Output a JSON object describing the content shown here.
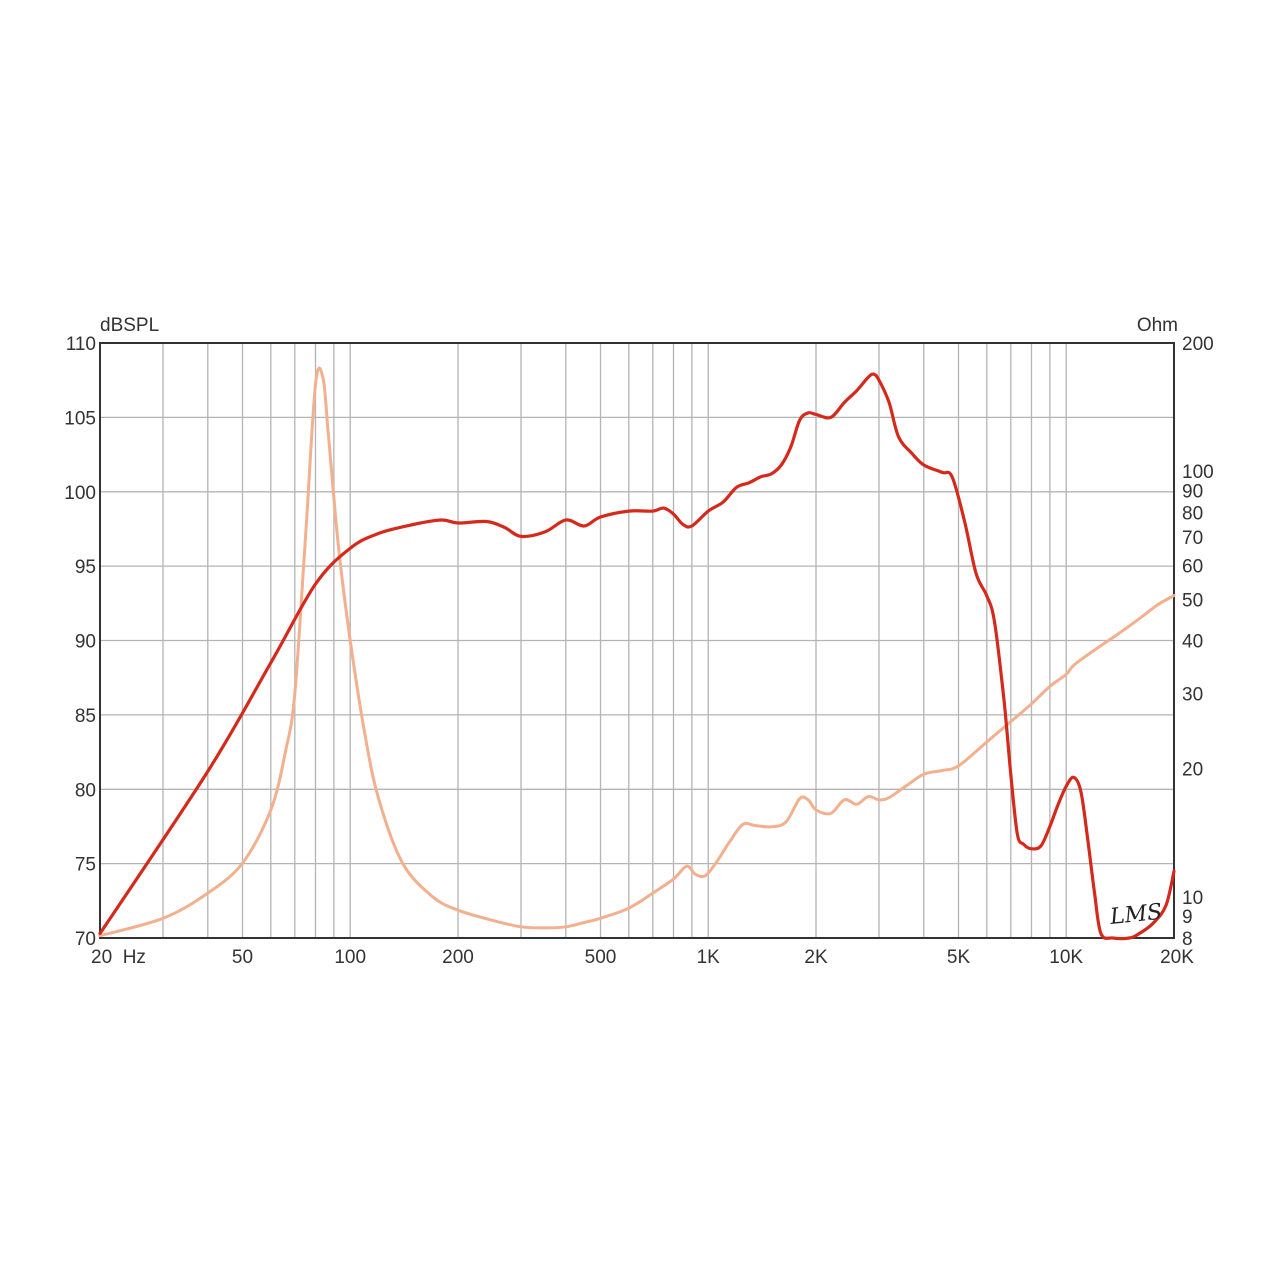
{
  "chart_data": {
    "type": "line",
    "x_scale": "log",
    "xlim": [
      20,
      20000
    ],
    "grid": true,
    "x_ticks": [
      {
        "value": 20,
        "label": "20  Hz"
      },
      {
        "value": 50,
        "label": "50"
      },
      {
        "value": 100,
        "label": "100"
      },
      {
        "value": 200,
        "label": "200"
      },
      {
        "value": 500,
        "label": "500"
      },
      {
        "value": 1000,
        "label": "1K"
      },
      {
        "value": 2000,
        "label": "2K"
      },
      {
        "value": 5000,
        "label": "5K"
      },
      {
        "value": 10000,
        "label": "10K"
      },
      {
        "value": 20000,
        "label": "20K"
      }
    ],
    "y_left": {
      "label": "dBSPL",
      "lim": [
        70,
        110
      ],
      "ticks": [
        70,
        75,
        80,
        85,
        90,
        95,
        100,
        105,
        110
      ]
    },
    "y_right": {
      "label": "Ohm",
      "scale": "log",
      "lim": [
        8,
        200
      ],
      "ticks": [
        8,
        9,
        10,
        20,
        30,
        40,
        50,
        60,
        70,
        80,
        90,
        100,
        200
      ]
    },
    "series": [
      {
        "axis": "left",
        "color": "#d42a1c",
        "points": [
          [
            20,
            70.3
          ],
          [
            40,
            81.2
          ],
          [
            60,
            88.5
          ],
          [
            80,
            93.8
          ],
          [
            100,
            96.2
          ],
          [
            120,
            97.2
          ],
          [
            150,
            97.8
          ],
          [
            180,
            98.1
          ],
          [
            200,
            97.9
          ],
          [
            240,
            98.0
          ],
          [
            270,
            97.6
          ],
          [
            300,
            97.0
          ],
          [
            350,
            97.3
          ],
          [
            400,
            98.1
          ],
          [
            450,
            97.7
          ],
          [
            500,
            98.3
          ],
          [
            600,
            98.7
          ],
          [
            700,
            98.7
          ],
          [
            750,
            98.9
          ],
          [
            800,
            98.5
          ],
          [
            850,
            97.8
          ],
          [
            900,
            97.7
          ],
          [
            1000,
            98.7
          ],
          [
            1100,
            99.3
          ],
          [
            1200,
            100.3
          ],
          [
            1300,
            100.6
          ],
          [
            1400,
            101.0
          ],
          [
            1500,
            101.2
          ],
          [
            1600,
            101.8
          ],
          [
            1700,
            103.0
          ],
          [
            1800,
            104.8
          ],
          [
            1900,
            105.3
          ],
          [
            2000,
            105.2
          ],
          [
            2200,
            105.0
          ],
          [
            2400,
            106.0
          ],
          [
            2600,
            106.8
          ],
          [
            2800,
            107.7
          ],
          [
            2900,
            107.9
          ],
          [
            3000,
            107.5
          ],
          [
            3200,
            106.0
          ],
          [
            3400,
            103.7
          ],
          [
            3700,
            102.6
          ],
          [
            4000,
            101.8
          ],
          [
            4500,
            101.3
          ],
          [
            4800,
            101.0
          ],
          [
            5200,
            98.0
          ],
          [
            5600,
            94.5
          ],
          [
            6000,
            93.0
          ],
          [
            6300,
            91.3
          ],
          [
            6700,
            86.0
          ],
          [
            7000,
            81.0
          ],
          [
            7300,
            77.0
          ],
          [
            7600,
            76.3
          ],
          [
            8000,
            76.0
          ],
          [
            8500,
            76.2
          ],
          [
            9000,
            77.5
          ],
          [
            9500,
            79.0
          ],
          [
            10000,
            80.2
          ],
          [
            10500,
            80.8
          ],
          [
            11000,
            79.8
          ],
          [
            11500,
            76.5
          ],
          [
            12000,
            73.0
          ],
          [
            12500,
            70.3
          ],
          [
            13500,
            70.0
          ],
          [
            15000,
            70.0
          ],
          [
            16000,
            70.3
          ],
          [
            17500,
            71.0
          ],
          [
            19000,
            72.2
          ],
          [
            20000,
            74.5
          ]
        ]
      },
      {
        "axis": "right",
        "color": "#f2b08e",
        "points": [
          [
            20,
            8.1
          ],
          [
            30,
            8.9
          ],
          [
            40,
            10.2
          ],
          [
            50,
            12.0
          ],
          [
            60,
            16.0
          ],
          [
            66,
            22.0
          ],
          [
            70,
            30.0
          ],
          [
            75,
            70.0
          ],
          [
            80,
            160.0
          ],
          [
            84,
            165.0
          ],
          [
            87,
            120.0
          ],
          [
            93,
            65.0
          ],
          [
            100,
            40.0
          ],
          [
            110,
            24.0
          ],
          [
            120,
            17.0
          ],
          [
            140,
            12.0
          ],
          [
            170,
            10.0
          ],
          [
            200,
            9.3
          ],
          [
            250,
            8.8
          ],
          [
            300,
            8.5
          ],
          [
            350,
            8.45
          ],
          [
            400,
            8.5
          ],
          [
            450,
            8.7
          ],
          [
            500,
            8.9
          ],
          [
            600,
            9.4
          ],
          [
            700,
            10.2
          ],
          [
            800,
            11.0
          ],
          [
            870,
            11.8
          ],
          [
            920,
            11.3
          ],
          [
            980,
            11.2
          ],
          [
            1050,
            12.0
          ],
          [
            1150,
            13.5
          ],
          [
            1250,
            14.8
          ],
          [
            1350,
            14.7
          ],
          [
            1500,
            14.6
          ],
          [
            1650,
            15.0
          ],
          [
            1800,
            17.0
          ],
          [
            1900,
            16.9
          ],
          [
            2000,
            16.0
          ],
          [
            2200,
            15.7
          ],
          [
            2400,
            16.9
          ],
          [
            2600,
            16.5
          ],
          [
            2800,
            17.2
          ],
          [
            3000,
            16.9
          ],
          [
            3200,
            17.1
          ],
          [
            3600,
            18.3
          ],
          [
            4000,
            19.4
          ],
          [
            4500,
            19.8
          ],
          [
            5000,
            20.3
          ],
          [
            6000,
            23.1
          ],
          [
            7000,
            25.8
          ],
          [
            8000,
            28.4
          ],
          [
            9000,
            31.2
          ],
          [
            10000,
            33.3
          ],
          [
            10500,
            35.0
          ],
          [
            12000,
            38.0
          ],
          [
            14000,
            41.5
          ],
          [
            16000,
            45.0
          ],
          [
            18000,
            48.5
          ],
          [
            20000,
            51.0
          ]
        ]
      }
    ]
  },
  "logo": {
    "text": "LMS"
  }
}
